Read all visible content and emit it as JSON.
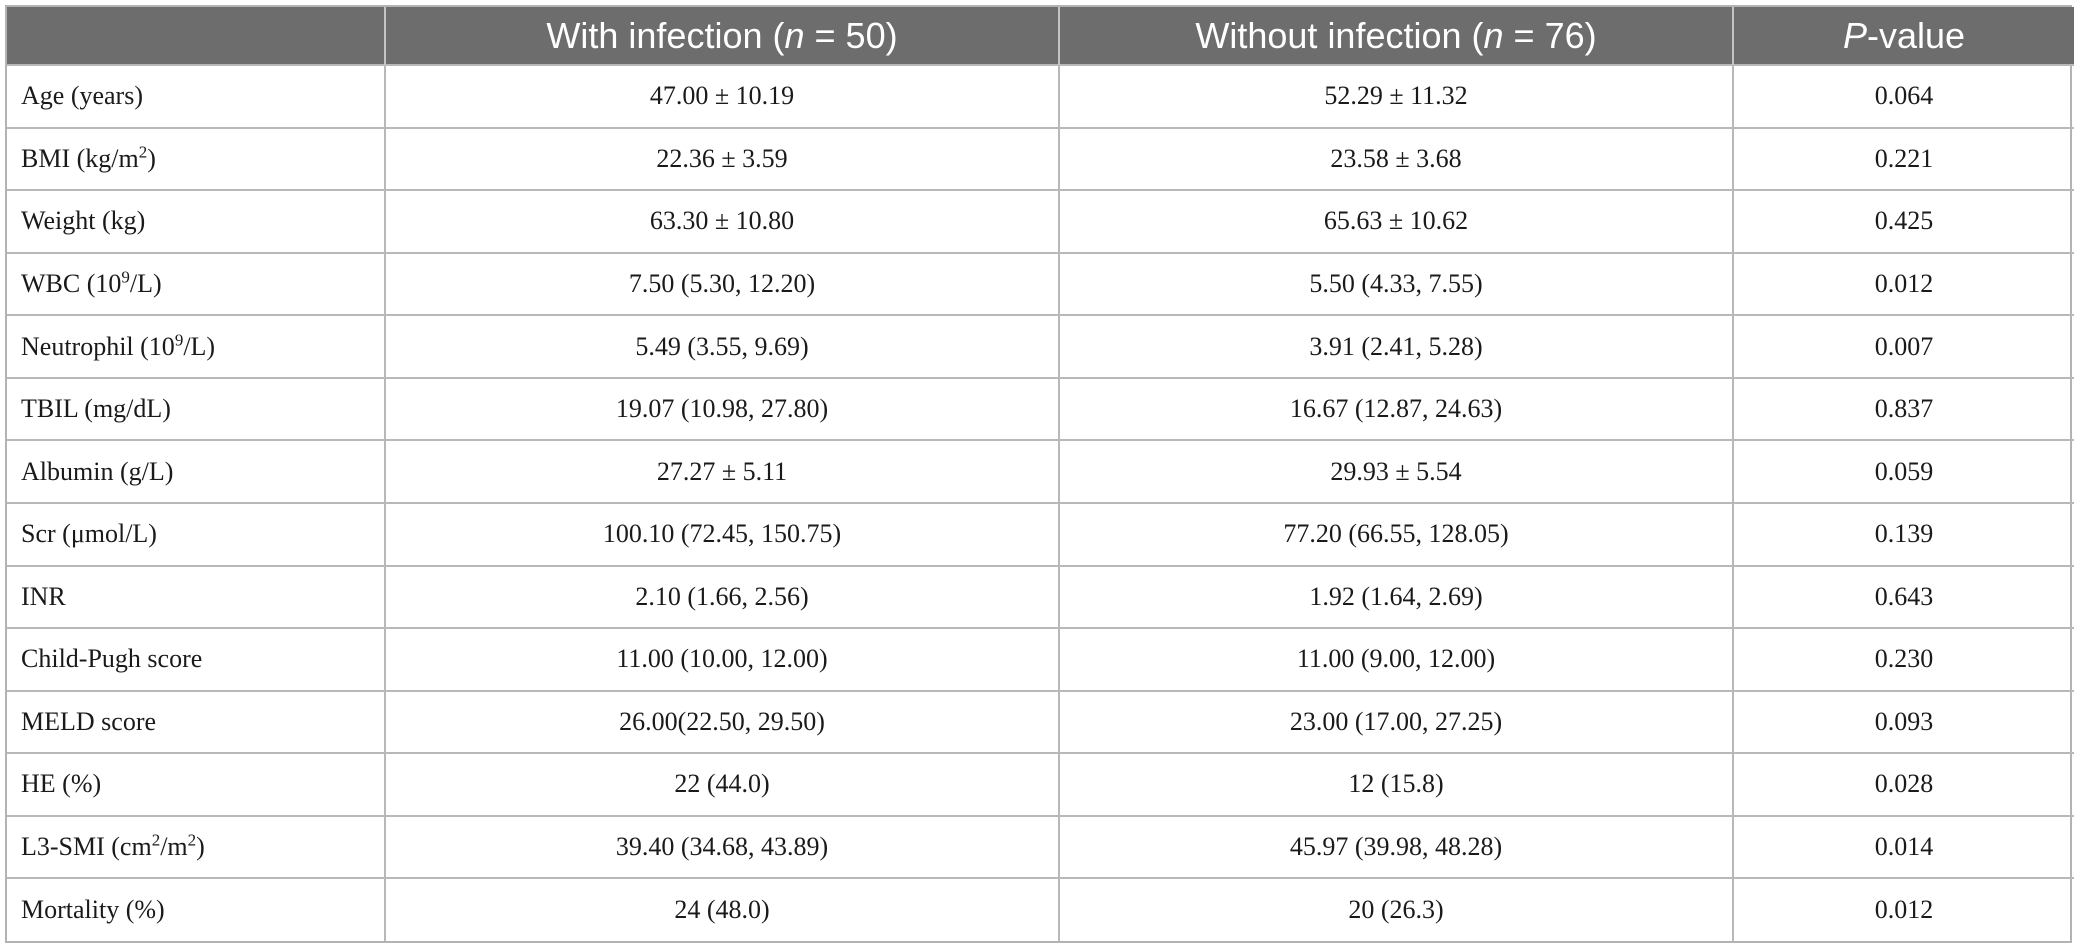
{
  "table": {
    "headers": {
      "col0": "",
      "col1": {
        "prefix": "With infection (",
        "n_var": "n",
        "suffix": " = 50)"
      },
      "col2": {
        "prefix": "Without infection (",
        "n_var": "n",
        "suffix": " = 76)"
      },
      "col3": {
        "p_var": "P",
        "suffix": "-value"
      }
    },
    "rows": [
      {
        "label": {
          "pre": "Age (years)",
          "sup": "",
          "post": ""
        },
        "with_infection": "47.00 ± 10.19",
        "without_infection": "52.29 ± 11.32",
        "p_value": "0.064"
      },
      {
        "label": {
          "pre": "BMI (kg/m",
          "sup": "2",
          "post": ")"
        },
        "with_infection": "22.36 ± 3.59",
        "without_infection": "23.58 ± 3.68",
        "p_value": "0.221"
      },
      {
        "label": {
          "pre": "Weight (kg)",
          "sup": "",
          "post": ""
        },
        "with_infection": "63.30 ± 10.80",
        "without_infection": "65.63 ± 10.62",
        "p_value": "0.425"
      },
      {
        "label": {
          "pre": "WBC (10",
          "sup": "9",
          "post": "/L)"
        },
        "with_infection": "7.50 (5.30, 12.20)",
        "without_infection": "5.50 (4.33, 7.55)",
        "p_value": "0.012"
      },
      {
        "label": {
          "pre": "Neutrophil (10",
          "sup": "9",
          "post": "/L)"
        },
        "with_infection": "5.49 (3.55, 9.69)",
        "without_infection": "3.91 (2.41, 5.28)",
        "p_value": "0.007"
      },
      {
        "label": {
          "pre": "TBIL (mg/dL)",
          "sup": "",
          "post": ""
        },
        "with_infection": "19.07 (10.98, 27.80)",
        "without_infection": "16.67 (12.87, 24.63)",
        "p_value": "0.837"
      },
      {
        "label": {
          "pre": "Albumin (g/L)",
          "sup": "",
          "post": ""
        },
        "with_infection": "27.27 ± 5.11",
        "without_infection": "29.93 ± 5.54",
        "p_value": "0.059"
      },
      {
        "label": {
          "pre": "Scr (μmol/L)",
          "sup": "",
          "post": ""
        },
        "with_infection": "100.10 (72.45, 150.75)",
        "without_infection": "77.20 (66.55, 128.05)",
        "p_value": "0.139"
      },
      {
        "label": {
          "pre": "INR",
          "sup": "",
          "post": ""
        },
        "with_infection": "2.10 (1.66, 2.56)",
        "without_infection": "1.92 (1.64, 2.69)",
        "p_value": "0.643"
      },
      {
        "label": {
          "pre": "Child-Pugh score",
          "sup": "",
          "post": ""
        },
        "with_infection": "11.00 (10.00, 12.00)",
        "without_infection": "11.00 (9.00, 12.00)",
        "p_value": "0.230"
      },
      {
        "label": {
          "pre": "MELD score",
          "sup": "",
          "post": ""
        },
        "with_infection": "26.00(22.50, 29.50)",
        "without_infection": "23.00 (17.00, 27.25)",
        "p_value": "0.093"
      },
      {
        "label": {
          "pre": "HE (%)",
          "sup": "",
          "post": ""
        },
        "with_infection": "22 (44.0)",
        "without_infection": "12 (15.8)",
        "p_value": "0.028"
      },
      {
        "label": {
          "pre": "L3-SMI (cm",
          "sup": "2",
          "post": "/m",
          "sup2": "2",
          "post2": ")"
        },
        "with_infection": "39.40 (34.68, 43.89)",
        "without_infection": "45.97 (39.98, 48.28)",
        "p_value": "0.014"
      },
      {
        "label": {
          "pre": "Mortality (%)",
          "sup": "",
          "post": ""
        },
        "with_infection": "24 (48.0)",
        "without_infection": "20 (26.3)",
        "p_value": "0.012"
      }
    ]
  }
}
